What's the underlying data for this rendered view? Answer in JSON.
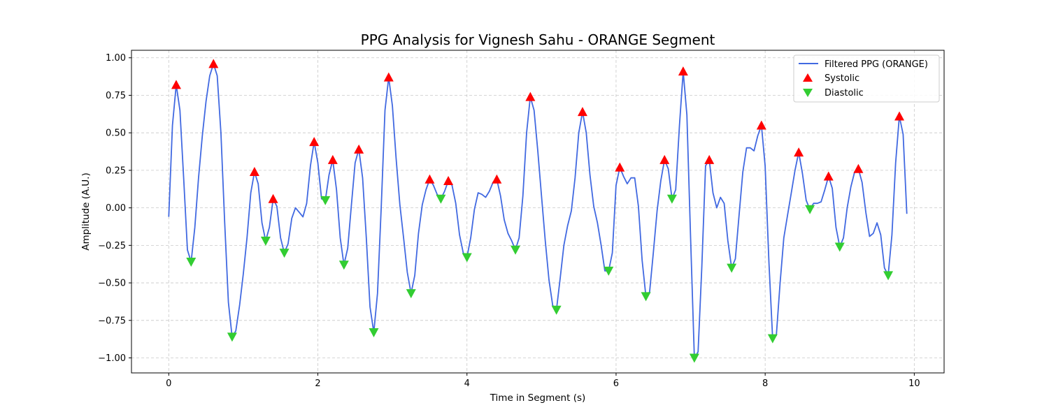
{
  "chart_data": {
    "type": "line",
    "title": "PPG Analysis for Vignesh Sahu - ORANGE Segment",
    "xlabel": "Time in Segment (s)",
    "ylabel": "Amplitude (A.U.)",
    "xlim": [
      -0.5,
      10.4
    ],
    "ylim": [
      -1.1,
      1.05
    ],
    "xticks": [
      0,
      2,
      4,
      6,
      8,
      10
    ],
    "yticks": [
      1.0,
      0.75,
      0.5,
      0.25,
      0.0,
      -0.25,
      -0.5,
      -0.75,
      -1.0
    ],
    "xtick_labels": [
      "0",
      "2",
      "4",
      "6",
      "8",
      "10"
    ],
    "ytick_labels": [
      "1.00",
      "0.75",
      "0.50",
      "0.25",
      "0.00",
      "−0.25",
      "−0.50",
      "−0.75",
      "−1.00"
    ],
    "grid": true,
    "legend_position": "top-right",
    "colors": {
      "line": "#4169e1",
      "systolic": "#ff0000",
      "diastolic": "#32cd32"
    },
    "series": [
      {
        "name": "Filtered PPG (ORANGE)",
        "kind": "line",
        "points": [
          [
            0.0,
            -0.06
          ],
          [
            0.05,
            0.55
          ],
          [
            0.1,
            0.82
          ],
          [
            0.15,
            0.65
          ],
          [
            0.2,
            0.2
          ],
          [
            0.25,
            -0.28
          ],
          [
            0.3,
            -0.36
          ],
          [
            0.35,
            -0.13
          ],
          [
            0.4,
            0.2
          ],
          [
            0.45,
            0.48
          ],
          [
            0.5,
            0.71
          ],
          [
            0.55,
            0.88
          ],
          [
            0.6,
            0.96
          ],
          [
            0.65,
            0.88
          ],
          [
            0.7,
            0.5
          ],
          [
            0.75,
            -0.1
          ],
          [
            0.8,
            -0.63
          ],
          [
            0.85,
            -0.86
          ],
          [
            0.9,
            -0.82
          ],
          [
            0.95,
            -0.65
          ],
          [
            1.0,
            -0.44
          ],
          [
            1.05,
            -0.2
          ],
          [
            1.1,
            0.1
          ],
          [
            1.15,
            0.24
          ],
          [
            1.2,
            0.16
          ],
          [
            1.25,
            -0.1
          ],
          [
            1.3,
            -0.22
          ],
          [
            1.35,
            -0.13
          ],
          [
            1.4,
            0.06
          ],
          [
            1.45,
            0.01
          ],
          [
            1.5,
            -0.2
          ],
          [
            1.55,
            -0.3
          ],
          [
            1.6,
            -0.24
          ],
          [
            1.65,
            -0.07
          ],
          [
            1.7,
            0.0
          ],
          [
            1.75,
            -0.03
          ],
          [
            1.8,
            -0.06
          ],
          [
            1.85,
            0.03
          ],
          [
            1.9,
            0.28
          ],
          [
            1.95,
            0.44
          ],
          [
            2.0,
            0.3
          ],
          [
            2.05,
            0.06
          ],
          [
            2.1,
            0.05
          ],
          [
            2.15,
            0.22
          ],
          [
            2.2,
            0.32
          ],
          [
            2.25,
            0.12
          ],
          [
            2.3,
            -0.2
          ],
          [
            2.35,
            -0.38
          ],
          [
            2.4,
            -0.27
          ],
          [
            2.45,
            0.02
          ],
          [
            2.5,
            0.3
          ],
          [
            2.55,
            0.39
          ],
          [
            2.6,
            0.2
          ],
          [
            2.65,
            -0.2
          ],
          [
            2.7,
            -0.66
          ],
          [
            2.75,
            -0.83
          ],
          [
            2.8,
            -0.57
          ],
          [
            2.85,
            0.0
          ],
          [
            2.9,
            0.65
          ],
          [
            2.95,
            0.87
          ],
          [
            3.0,
            0.68
          ],
          [
            3.05,
            0.33
          ],
          [
            3.1,
            0.02
          ],
          [
            3.15,
            -0.2
          ],
          [
            3.2,
            -0.43
          ],
          [
            3.25,
            -0.57
          ],
          [
            3.3,
            -0.45
          ],
          [
            3.35,
            -0.17
          ],
          [
            3.4,
            0.02
          ],
          [
            3.45,
            0.12
          ],
          [
            3.5,
            0.19
          ],
          [
            3.55,
            0.15
          ],
          [
            3.6,
            0.09
          ],
          [
            3.65,
            0.06
          ],
          [
            3.7,
            0.11
          ],
          [
            3.75,
            0.18
          ],
          [
            3.8,
            0.15
          ],
          [
            3.85,
            0.03
          ],
          [
            3.9,
            -0.18
          ],
          [
            3.95,
            -0.3
          ],
          [
            4.0,
            -0.33
          ],
          [
            4.05,
            -0.2
          ],
          [
            4.1,
            -0.01
          ],
          [
            4.15,
            0.1
          ],
          [
            4.2,
            0.09
          ],
          [
            4.25,
            0.07
          ],
          [
            4.3,
            0.11
          ],
          [
            4.35,
            0.17
          ],
          [
            4.4,
            0.19
          ],
          [
            4.45,
            0.08
          ],
          [
            4.5,
            -0.08
          ],
          [
            4.55,
            -0.17
          ],
          [
            4.6,
            -0.22
          ],
          [
            4.65,
            -0.28
          ],
          [
            4.7,
            -0.2
          ],
          [
            4.75,
            0.08
          ],
          [
            4.8,
            0.5
          ],
          [
            4.85,
            0.74
          ],
          [
            4.9,
            0.65
          ],
          [
            4.95,
            0.38
          ],
          [
            5.0,
            0.08
          ],
          [
            5.05,
            -0.22
          ],
          [
            5.1,
            -0.48
          ],
          [
            5.15,
            -0.65
          ],
          [
            5.2,
            -0.68
          ],
          [
            5.25,
            -0.47
          ],
          [
            5.3,
            -0.25
          ],
          [
            5.35,
            -0.12
          ],
          [
            5.4,
            -0.02
          ],
          [
            5.45,
            0.2
          ],
          [
            5.5,
            0.5
          ],
          [
            5.55,
            0.64
          ],
          [
            5.6,
            0.5
          ],
          [
            5.65,
            0.22
          ],
          [
            5.7,
            0.01
          ],
          [
            5.75,
            -0.1
          ],
          [
            5.8,
            -0.25
          ],
          [
            5.85,
            -0.42
          ],
          [
            5.9,
            -0.42
          ],
          [
            5.95,
            -0.3
          ],
          [
            6.0,
            0.15
          ],
          [
            6.05,
            0.27
          ],
          [
            6.1,
            0.21
          ],
          [
            6.15,
            0.16
          ],
          [
            6.2,
            0.2
          ],
          [
            6.25,
            0.2
          ],
          [
            6.3,
            0.01
          ],
          [
            6.35,
            -0.35
          ],
          [
            6.4,
            -0.59
          ],
          [
            6.45,
            -0.56
          ],
          [
            6.5,
            -0.3
          ],
          [
            6.55,
            -0.02
          ],
          [
            6.6,
            0.18
          ],
          [
            6.65,
            0.32
          ],
          [
            6.7,
            0.26
          ],
          [
            6.75,
            0.06
          ],
          [
            6.8,
            0.12
          ],
          [
            6.85,
            0.55
          ],
          [
            6.9,
            0.91
          ],
          [
            6.95,
            0.62
          ],
          [
            7.0,
            -0.2
          ],
          [
            7.05,
            -1.0
          ],
          [
            7.1,
            -0.96
          ],
          [
            7.15,
            -0.4
          ],
          [
            7.2,
            0.28
          ],
          [
            7.25,
            0.32
          ],
          [
            7.3,
            0.1
          ],
          [
            7.35,
            0.0
          ],
          [
            7.4,
            0.07
          ],
          [
            7.45,
            0.03
          ],
          [
            7.5,
            -0.22
          ],
          [
            7.55,
            -0.4
          ],
          [
            7.6,
            -0.34
          ],
          [
            7.65,
            -0.05
          ],
          [
            7.7,
            0.24
          ],
          [
            7.75,
            0.4
          ],
          [
            7.8,
            0.4
          ],
          [
            7.85,
            0.38
          ],
          [
            7.9,
            0.48
          ],
          [
            7.95,
            0.55
          ],
          [
            8.0,
            0.28
          ],
          [
            8.05,
            -0.36
          ],
          [
            8.1,
            -0.87
          ],
          [
            8.15,
            -0.85
          ],
          [
            8.2,
            -0.5
          ],
          [
            8.25,
            -0.2
          ],
          [
            8.3,
            -0.05
          ],
          [
            8.35,
            0.1
          ],
          [
            8.4,
            0.25
          ],
          [
            8.45,
            0.37
          ],
          [
            8.5,
            0.23
          ],
          [
            8.55,
            0.05
          ],
          [
            8.6,
            -0.01
          ],
          [
            8.65,
            0.03
          ],
          [
            8.7,
            0.03
          ],
          [
            8.75,
            0.04
          ],
          [
            8.8,
            0.12
          ],
          [
            8.85,
            0.21
          ],
          [
            8.9,
            0.13
          ],
          [
            8.95,
            -0.13
          ],
          [
            9.0,
            -0.26
          ],
          [
            9.05,
            -0.2
          ],
          [
            9.1,
            0.0
          ],
          [
            9.15,
            0.14
          ],
          [
            9.2,
            0.24
          ],
          [
            9.25,
            0.26
          ],
          [
            9.3,
            0.17
          ],
          [
            9.35,
            -0.03
          ],
          [
            9.4,
            -0.19
          ],
          [
            9.45,
            -0.17
          ],
          [
            9.5,
            -0.1
          ],
          [
            9.55,
            -0.18
          ],
          [
            9.6,
            -0.4
          ],
          [
            9.65,
            -0.45
          ],
          [
            9.7,
            -0.18
          ],
          [
            9.75,
            0.3
          ],
          [
            9.8,
            0.61
          ],
          [
            9.85,
            0.49
          ],
          [
            9.9,
            -0.04
          ]
        ]
      },
      {
        "name": "Systolic",
        "kind": "marker-up",
        "points": [
          [
            0.1,
            0.82
          ],
          [
            0.6,
            0.96
          ],
          [
            1.15,
            0.24
          ],
          [
            1.4,
            0.06
          ],
          [
            1.95,
            0.44
          ],
          [
            2.2,
            0.32
          ],
          [
            2.55,
            0.39
          ],
          [
            2.95,
            0.87
          ],
          [
            3.5,
            0.19
          ],
          [
            3.75,
            0.18
          ],
          [
            4.4,
            0.19
          ],
          [
            4.85,
            0.74
          ],
          [
            5.55,
            0.64
          ],
          [
            6.05,
            0.27
          ],
          [
            6.65,
            0.32
          ],
          [
            6.9,
            0.91
          ],
          [
            7.25,
            0.32
          ],
          [
            7.95,
            0.55
          ],
          [
            8.45,
            0.37
          ],
          [
            8.85,
            0.21
          ],
          [
            9.25,
            0.26
          ],
          [
            9.8,
            0.61
          ]
        ]
      },
      {
        "name": "Diastolic",
        "kind": "marker-down",
        "points": [
          [
            0.3,
            -0.36
          ],
          [
            0.85,
            -0.86
          ],
          [
            1.3,
            -0.22
          ],
          [
            1.55,
            -0.3
          ],
          [
            2.1,
            0.05
          ],
          [
            2.35,
            -0.38
          ],
          [
            2.75,
            -0.83
          ],
          [
            3.25,
            -0.57
          ],
          [
            3.65,
            0.06
          ],
          [
            4.0,
            -0.33
          ],
          [
            4.65,
            -0.28
          ],
          [
            5.2,
            -0.68
          ],
          [
            5.9,
            -0.42
          ],
          [
            6.4,
            -0.59
          ],
          [
            6.75,
            0.06
          ],
          [
            7.05,
            -1.0
          ],
          [
            7.55,
            -0.4
          ],
          [
            8.1,
            -0.87
          ],
          [
            8.6,
            -0.01
          ],
          [
            9.0,
            -0.26
          ],
          [
            9.65,
            -0.45
          ]
        ]
      }
    ]
  }
}
